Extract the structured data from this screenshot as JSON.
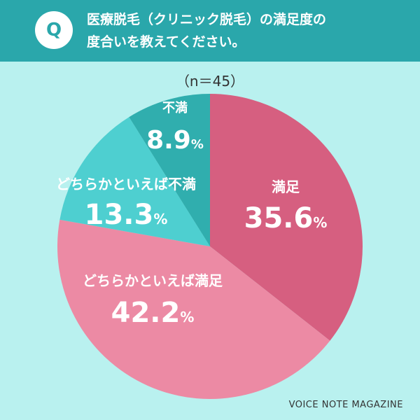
{
  "header": {
    "badge": "Q",
    "question_line1": "医療脱毛（クリニック脱毛）の満足度の",
    "question_line2": "度合いを教えてください。"
  },
  "sample_size": "（n＝45）",
  "watermark": "VOICE NOTE MAGAZINE",
  "colors": {
    "header_bg": "#2aa7ab",
    "page_bg": "#b9f1ef"
  },
  "chart_data": {
    "type": "pie",
    "start_angle": "12 o'clock, clockwise",
    "slices": [
      {
        "label": "満足",
        "value": 35.6,
        "display": "35.6",
        "unit": "%",
        "color": "#d65f80"
      },
      {
        "label": "どちらかといえば満足",
        "value": 42.2,
        "display": "42.2",
        "unit": "%",
        "color": "#ec8aa4"
      },
      {
        "label": "どちらかといえば不満",
        "value": 13.3,
        "display": "13.3",
        "unit": "%",
        "color": "#4ecfd0"
      },
      {
        "label": "不満",
        "value": 8.9,
        "display": "8.9",
        "unit": "%",
        "color": "#30aeae"
      }
    ]
  }
}
